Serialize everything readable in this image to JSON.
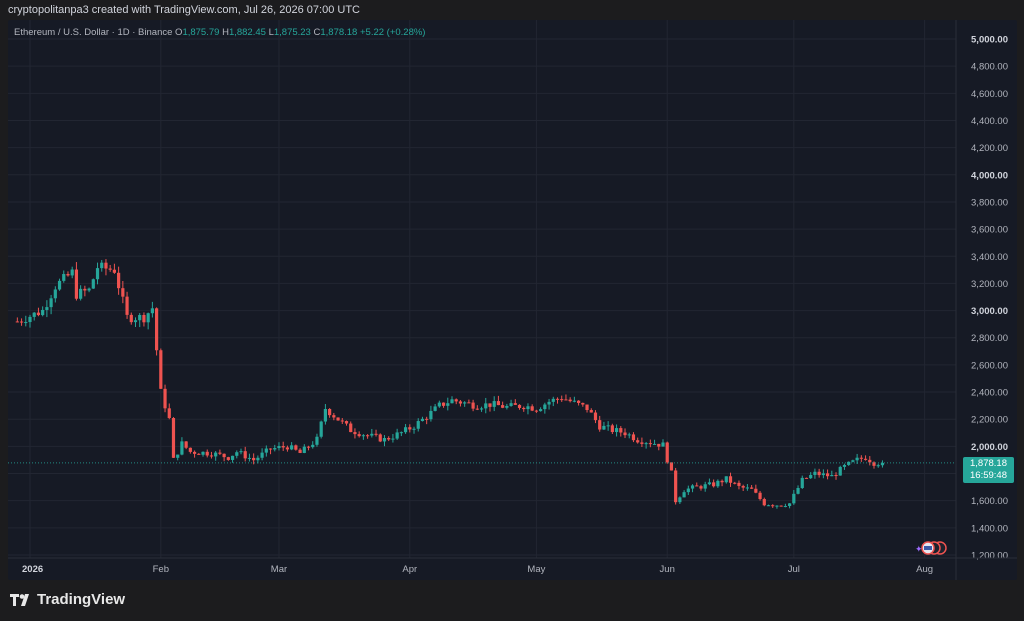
{
  "attribution": "cryptopolitanpa3 created with TradingView.com, Jul 26, 2026 07:00 UTC",
  "legend": {
    "symbol": "Ethereum / U.S. Dollar · 1D · Binance",
    "o_label": "O",
    "o_value": "1,875.79",
    "h_label": "H",
    "h_value": "1,882.45",
    "l_label": "L",
    "l_value": "1,875.23",
    "c_label": "C",
    "c_value": "1,878.18",
    "change": "+5.22 (+0.28%)"
  },
  "price_tag": {
    "price": "1,878.18",
    "countdown": "16:59:48"
  },
  "footer": {
    "brand": "TradingView",
    "logo_icon": "tradingview-logo-icon"
  },
  "colors": {
    "up": "#26a69a",
    "down": "#ef5350",
    "background": "#161a25",
    "grid": "#222632",
    "axis_text": "#b2b5be"
  },
  "chart_data": {
    "type": "candlestick",
    "ylim": [
      1200,
      5000
    ],
    "y_ticks": [
      "1,200.00",
      "1,400.00",
      "1,600.00",
      "1,800.00",
      "2,000.00",
      "2,200.00",
      "2,400.00",
      "2,600.00",
      "2,800.00",
      "3,000.00",
      "3,200.00",
      "3,400.00",
      "3,600.00",
      "3,800.00",
      "4,000.00",
      "4,200.00",
      "4,400.00",
      "4,600.00",
      "4,800.00",
      "5,000.00"
    ],
    "y_tick_values": [
      1200,
      1400,
      1600,
      1800,
      2000,
      2200,
      2400,
      2600,
      2800,
      3000,
      3200,
      3400,
      3600,
      3800,
      4000,
      4200,
      4400,
      4600,
      4800,
      5000
    ],
    "x_ticks": [
      {
        "label": "2026",
        "day": 0
      },
      {
        "label": "Feb",
        "day": 31
      },
      {
        "label": "Mar",
        "day": 59
      },
      {
        "label": "Apr",
        "day": 90
      },
      {
        "label": "May",
        "day": 120
      },
      {
        "label": "Jun",
        "day": 151
      },
      {
        "label": "Jul",
        "day": 181
      },
      {
        "label": "Aug",
        "day": 212
      }
    ],
    "x_start_day": -3,
    "close_path": [
      [
        -3,
        2920
      ],
      [
        3,
        3000
      ],
      [
        6,
        3180
      ],
      [
        10,
        3280
      ],
      [
        11,
        3120
      ],
      [
        14,
        3150
      ],
      [
        16,
        3320
      ],
      [
        20,
        3300
      ],
      [
        23,
        2950
      ],
      [
        27,
        2950
      ],
      [
        29,
        3020
      ],
      [
        31,
        2400
      ],
      [
        33,
        2200
      ],
      [
        34,
        1900
      ],
      [
        36,
        2020
      ],
      [
        38,
        1960
      ],
      [
        43,
        1950
      ],
      [
        47,
        1920
      ],
      [
        49,
        1960
      ],
      [
        53,
        1900
      ],
      [
        57,
        1980
      ],
      [
        61,
        2000
      ],
      [
        64,
        1950
      ],
      [
        68,
        2050
      ],
      [
        70,
        2280
      ],
      [
        73,
        2200
      ],
      [
        76,
        2120
      ],
      [
        80,
        2080
      ],
      [
        84,
        2050
      ],
      [
        88,
        2100
      ],
      [
        91,
        2150
      ],
      [
        94,
        2220
      ],
      [
        97,
        2300
      ],
      [
        100,
        2340
      ],
      [
        103,
        2320
      ],
      [
        106,
        2300
      ],
      [
        109,
        2310
      ],
      [
        113,
        2290
      ],
      [
        117,
        2300
      ],
      [
        120,
        2280
      ],
      [
        123,
        2330
      ],
      [
        126,
        2360
      ],
      [
        129,
        2320
      ],
      [
        132,
        2280
      ],
      [
        135,
        2150
      ],
      [
        138,
        2120
      ],
      [
        141,
        2100
      ],
      [
        144,
        2050
      ],
      [
        147,
        2030
      ],
      [
        150,
        2010
      ],
      [
        152,
        1800
      ],
      [
        153,
        1600
      ],
      [
        155,
        1680
      ],
      [
        158,
        1700
      ],
      [
        162,
        1720
      ],
      [
        165,
        1760
      ],
      [
        168,
        1700
      ],
      [
        171,
        1680
      ],
      [
        174,
        1580
      ],
      [
        177,
        1570
      ],
      [
        180,
        1580
      ],
      [
        183,
        1750
      ],
      [
        186,
        1800
      ],
      [
        190,
        1780
      ],
      [
        193,
        1850
      ],
      [
        196,
        1900
      ],
      [
        198,
        1920
      ],
      [
        200,
        1880
      ],
      [
        202,
        1878
      ]
    ],
    "last_price": 1878.18
  }
}
